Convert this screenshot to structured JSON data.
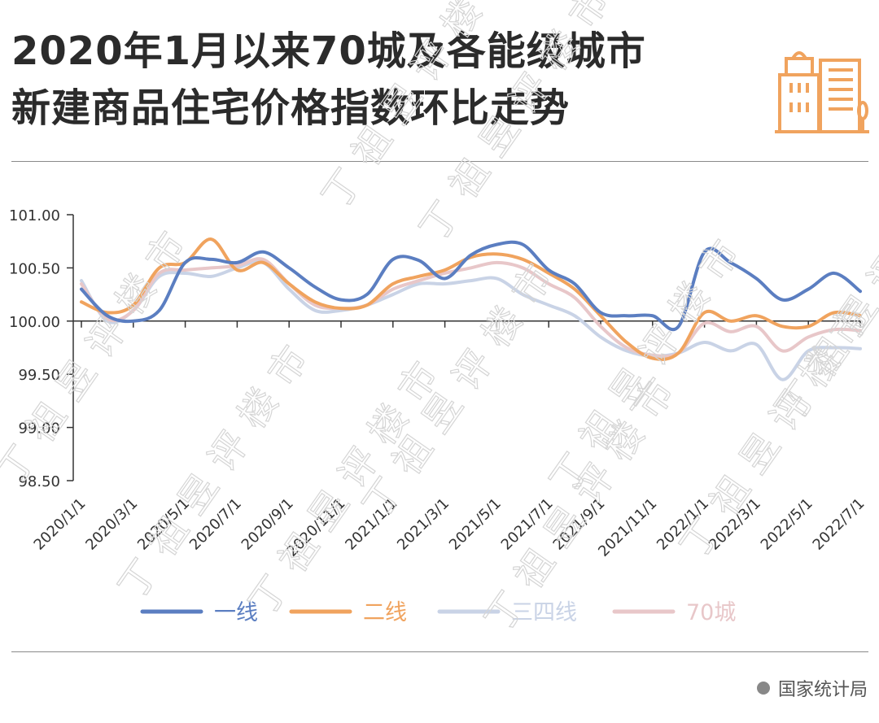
{
  "title_lines": [
    "2020年1月以来70城及各能级城市",
    "新建商品住宅价格指数环比走势"
  ],
  "source": "国家统计局",
  "watermark": "丁祖昱评楼市",
  "colors": {
    "line1": "#5b7ec1",
    "line2": "#f0a35e",
    "line3": "#c9d3e6",
    "line4": "#e8c7c9",
    "icon": "#f0a35e"
  },
  "chart_data": {
    "type": "line",
    "title": "2020年1月以来70城及各能级城市新建商品住宅价格指数环比走势",
    "xlabel": "",
    "ylabel": "",
    "ylim": [
      98.5,
      101.0
    ],
    "yticks": [
      98.5,
      99.0,
      99.5,
      100.0,
      100.5,
      101.0
    ],
    "ytick_labels": [
      "98.50",
      "99.00",
      "99.50",
      "100.00",
      "100.50",
      "101.00"
    ],
    "x": [
      "2020/1/1",
      "2020/2/1",
      "2020/3/1",
      "2020/4/1",
      "2020/5/1",
      "2020/6/1",
      "2020/7/1",
      "2020/8/1",
      "2020/9/1",
      "2020/10/1",
      "2020/11/1",
      "2020/12/1",
      "2021/1/1",
      "2021/2/1",
      "2021/3/1",
      "2021/4/1",
      "2021/5/1",
      "2021/6/1",
      "2021/7/1",
      "2021/8/1",
      "2021/9/1",
      "2021/10/1",
      "2021/11/1",
      "2021/12/1",
      "2022/1/1",
      "2022/2/1",
      "2022/3/1",
      "2022/4/1",
      "2022/5/1",
      "2022/6/1",
      "2022/7/1"
    ],
    "xtick_labels": [
      "2020/1/1",
      "2020/3/1",
      "2020/5/1",
      "2020/7/1",
      "2020/9/1",
      "2020/11/1",
      "2021/1/1",
      "2021/3/1",
      "2021/5/1",
      "2021/7/1",
      "2021/9/1",
      "2021/11/1",
      "2022/1/1",
      "2022/3/1",
      "2022/5/1",
      "2022/7/1"
    ],
    "grid": false,
    "legend": "bottom",
    "series": [
      {
        "name": "一线",
        "values": [
          100.3,
          100.05,
          100.0,
          100.1,
          100.55,
          100.58,
          100.55,
          100.65,
          100.5,
          100.32,
          100.2,
          100.25,
          100.58,
          100.57,
          100.4,
          100.62,
          100.72,
          100.72,
          100.48,
          100.35,
          100.08,
          100.05,
          100.05,
          99.95,
          100.65,
          100.55,
          100.4,
          100.2,
          100.3,
          100.45,
          100.28
        ]
      },
      {
        "name": "二线",
        "values": [
          100.18,
          100.08,
          100.15,
          100.5,
          100.55,
          100.77,
          100.48,
          100.55,
          100.35,
          100.18,
          100.12,
          100.15,
          100.35,
          100.42,
          100.48,
          100.6,
          100.63,
          100.58,
          100.45,
          100.3,
          100.05,
          99.8,
          99.65,
          99.7,
          100.08,
          100.0,
          100.05,
          99.95,
          99.95,
          100.08,
          100.05
        ]
      },
      {
        "name": "三四线",
        "values": [
          100.38,
          100.0,
          100.1,
          100.42,
          100.45,
          100.42,
          100.5,
          100.55,
          100.3,
          100.1,
          100.1,
          100.15,
          100.25,
          100.35,
          100.35,
          100.38,
          100.4,
          100.25,
          100.15,
          100.05,
          99.85,
          99.72,
          99.67,
          99.7,
          99.8,
          99.72,
          99.78,
          99.45,
          99.72,
          99.75,
          99.74
        ]
      },
      {
        "name": "70城",
        "values": [
          100.35,
          100.02,
          100.1,
          100.45,
          100.48,
          100.5,
          100.52,
          100.58,
          100.35,
          100.15,
          100.12,
          100.15,
          100.3,
          100.38,
          100.45,
          100.5,
          100.55,
          100.5,
          100.35,
          100.22,
          99.95,
          99.75,
          99.68,
          99.7,
          99.98,
          99.9,
          99.95,
          99.72,
          99.85,
          99.92,
          99.91
        ]
      }
    ]
  }
}
